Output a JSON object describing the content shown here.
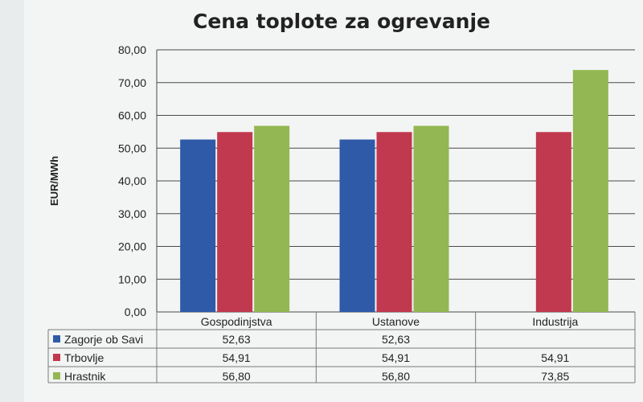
{
  "chart_data": {
    "type": "bar",
    "title": "Cena toplote za ogrevanje",
    "ylabel": "EUR/MWh",
    "xlabel": "",
    "ylim": [
      0,
      80
    ],
    "yticks": [
      "0,00",
      "10,00",
      "20,00",
      "30,00",
      "40,00",
      "50,00",
      "60,00",
      "70,00",
      "80,00"
    ],
    "grid": true,
    "legend": "data-table",
    "categories": [
      "Gospodinjstva",
      "Ustanove",
      "Industrija"
    ],
    "series": [
      {
        "name": "Zagorje ob Savi",
        "color": "#2e5aa8",
        "values": [
          52.63,
          52.63,
          null
        ],
        "labels": [
          "52,63",
          "52,63",
          ""
        ]
      },
      {
        "name": "Trbovlje",
        "color": "#c0394f",
        "values": [
          54.91,
          54.91,
          54.91
        ],
        "labels": [
          "54,91",
          "54,91",
          "54,91"
        ]
      },
      {
        "name": "Hrastnik",
        "color": "#93b752",
        "values": [
          56.8,
          56.8,
          73.85
        ],
        "labels": [
          "56,80",
          "56,80",
          "73,85"
        ]
      }
    ]
  }
}
